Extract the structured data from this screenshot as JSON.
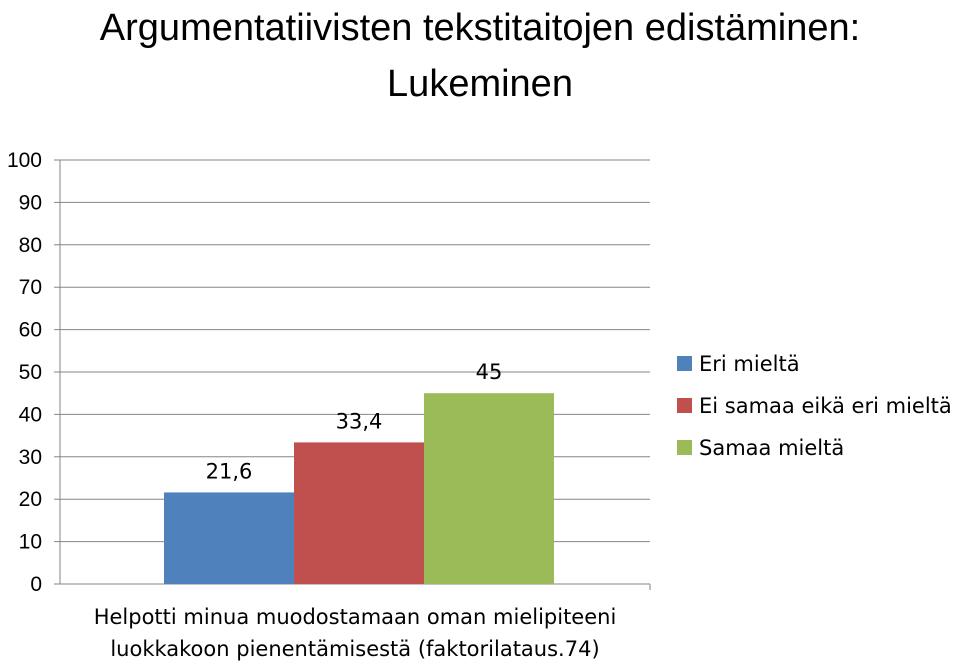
{
  "chart_data": {
    "type": "bar",
    "title": "Argumentatiivisten tekstitaitojen edistäminen: Lukeminen",
    "title_lines": [
      "Argumentatiivisten tekstitaitojen edistäminen:",
      "Lukeminen"
    ],
    "categories": [
      "Helpotti minua muodostamaan oman mielipiteeni luokkakoon pienentämisestä (faktorilataus.74)"
    ],
    "category_lines": [
      "Helpotti minua muodostamaan oman mielipiteeni",
      "luokkakoon pienentämisestä (faktorilataus.74)"
    ],
    "series": [
      {
        "name": "Eri mieltä",
        "values": [
          21.6
        ],
        "label": "21,6",
        "color": "#4F81BD"
      },
      {
        "name": "Ei samaa eikä eri mieltä",
        "values": [
          33.4
        ],
        "label": "33,4",
        "color": "#C0504D"
      },
      {
        "name": "Samaa mieltä",
        "values": [
          45
        ],
        "label": "45",
        "color": "#9BBB59"
      }
    ],
    "ylim": [
      0,
      100
    ],
    "yticks": [
      0,
      10,
      20,
      30,
      40,
      50,
      60,
      70,
      80,
      90,
      100
    ],
    "xlabel": "",
    "ylabel": "",
    "grid": true,
    "legend": "right"
  }
}
